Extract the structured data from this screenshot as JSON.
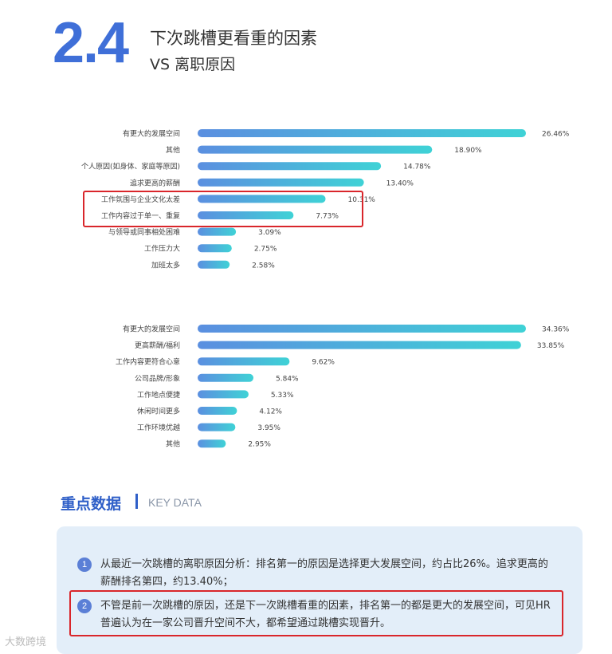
{
  "header": {
    "section_number": "2.4",
    "title_line1": "下次跳槽更看重的因素",
    "title_line2": "VS  离职原因"
  },
  "chart_data": [
    {
      "type": "bar",
      "orientation": "horizontal",
      "categories": [
        "有更大的发展空间",
        "其他",
        "个人原因(如身体、家庭等原因)",
        "追求更高的薪酬",
        "工作氛围与企业文化太差",
        "工作内容过于单一、重复",
        "与领导或同事相处困难",
        "工作压力大",
        "加班太多"
      ],
      "values": [
        26.46,
        18.9,
        14.78,
        13.4,
        10.31,
        7.73,
        3.09,
        2.75,
        2.58
      ],
      "labels": [
        "26.46%",
        "18.90%",
        "14.78%",
        "13.40%",
        "10.31%",
        "7.73%",
        "3.09%",
        "2.75%",
        "2.58%"
      ],
      "highlighted": [
        "工作氛围与企业文化太差",
        "工作内容过于单一、重复"
      ],
      "color_start": "#5b8fe0",
      "color_end": "#3fd2d6"
    },
    {
      "type": "bar",
      "orientation": "horizontal",
      "categories": [
        "有更大的发展空间",
        "更高薪酬/福利",
        "工作内容更符合心意",
        "公司品牌/形象",
        "工作地点便捷",
        "休闲时间更多",
        "工作环境优越",
        "其他"
      ],
      "values": [
        34.36,
        33.85,
        9.62,
        5.84,
        5.33,
        4.12,
        3.95,
        2.95
      ],
      "labels": [
        "34.36%",
        "33.85%",
        "9.62%",
        "5.84%",
        "5.33%",
        "4.12%",
        "3.95%",
        "2.95%"
      ],
      "color_start": "#5b8fe0",
      "color_end": "#3fd2d6"
    }
  ],
  "key_data": {
    "title": "重点数据",
    "title_en": "KEY DATA",
    "items": [
      {
        "num": "1",
        "text": "从最近一次跳槽的离职原因分析：排名第一的原因是选择更大发展空间，约占比26%。追求更高的薪酬排名第四，约13.40%；"
      },
      {
        "num": "2",
        "text": "不管是前一次跳槽的原因，还是下一次跳槽看重的因素，排名第一的都是更大的发展空间，可见HR普遍认为在一家公司晋升空间不大，都希望通过跳槽实现晋升。"
      }
    ]
  },
  "footer": {
    "watermark": "大数跨境"
  },
  "colors": {
    "accent": "#3f6fd8",
    "highlight_border": "#d9262b",
    "panel_bg": "#e3eef9"
  }
}
